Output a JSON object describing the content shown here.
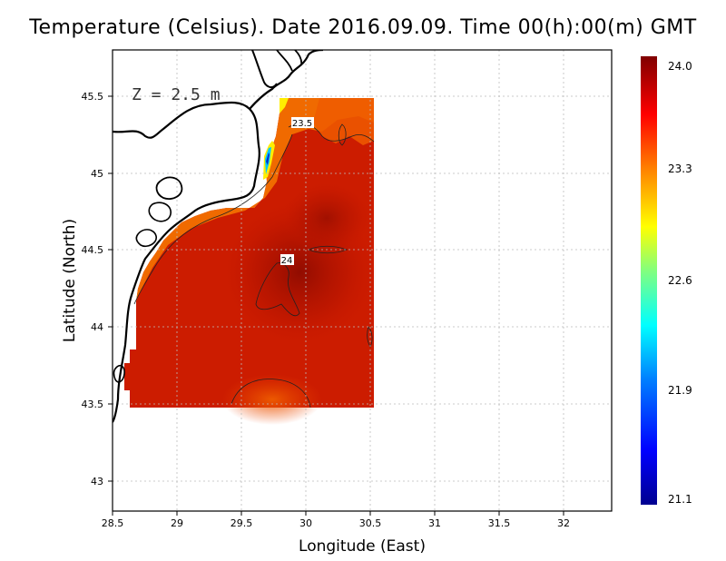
{
  "title": "Temperature (Celsius). Date 2016.09.09. Time 00(h):00(m) GMT",
  "depth_label": "Z = 2.5 m",
  "contour_labels": [
    "23.5",
    "24"
  ],
  "colorbar": {
    "ticks": [
      "24.0",
      "23.3",
      "22.6",
      "21.9",
      "21.1"
    ],
    "min": 21.1,
    "max": 24.0
  },
  "chart_data": {
    "type": "heatmap",
    "title": "Temperature (Celsius). Date 2016.09.09. Time 00(h):00(m) GMT",
    "xlabel": "Longitude (East)",
    "ylabel": "Latitude (North)",
    "xlim": [
      28.5,
      32.4
    ],
    "ylim": [
      42.8,
      45.8
    ],
    "x_ticks": [
      "28.5",
      "29",
      "29.5",
      "30",
      "30.5",
      "31",
      "31.5",
      "32"
    ],
    "y_ticks": [
      "43",
      "43.5",
      "44",
      "44.5",
      "45",
      "45.5"
    ],
    "grid": true,
    "data_extent": {
      "lon": [
        28.62,
        30.55
      ],
      "lat": [
        43.5,
        45.5
      ]
    },
    "value_range": [
      21.1,
      24.0
    ]
  }
}
